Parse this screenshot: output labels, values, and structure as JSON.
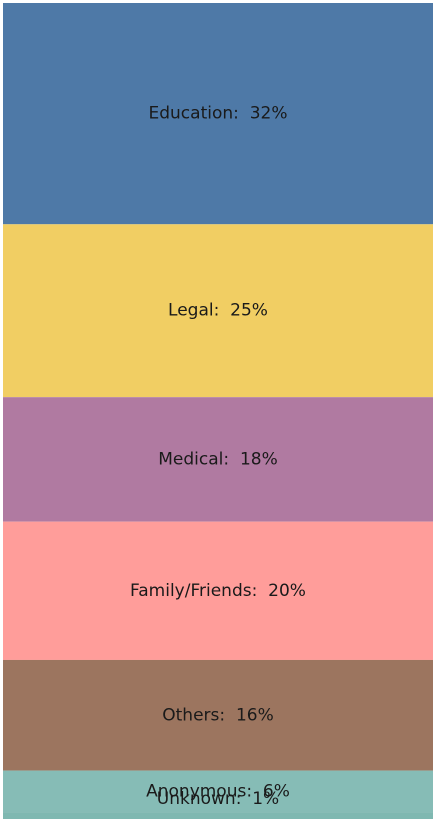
{
  "chart_data": {
    "type": "stacked-bar",
    "categories": [
      "Education",
      "Legal",
      "Medical",
      "Family/Friends",
      "Others",
      "Anonymous",
      "Unknown"
    ],
    "values": [
      32,
      25,
      18,
      20,
      16,
      6,
      1
    ],
    "value_labels": [
      "32%",
      "25%",
      "18%",
      "20%",
      "16%",
      "6%",
      "1%"
    ],
    "colors": [
      "#4e79a7",
      "#f1ce63",
      "#b07aa1",
      "#ff9d9a",
      "#9c755f",
      "#86bcb6",
      "#7fb8b1"
    ]
  }
}
